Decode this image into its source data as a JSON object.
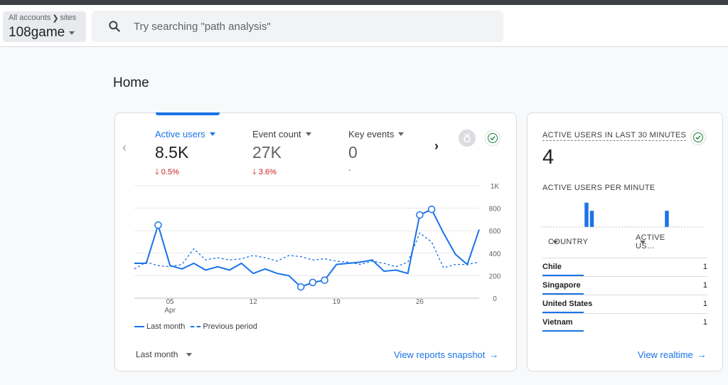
{
  "header": {
    "breadcrumb_account": "All accounts",
    "breadcrumb_property": "sites",
    "property_name": "108game",
    "search_placeholder": "Try searching \"path analysis\""
  },
  "page_title": "Home",
  "metrics_card": {
    "metrics": [
      {
        "label": "Active users",
        "value": "8.5K",
        "delta": "0.5%",
        "direction": "down",
        "active": true
      },
      {
        "label": "Event count",
        "value": "27K",
        "delta": "3.6%",
        "direction": "down",
        "active": false
      },
      {
        "label": "Key events",
        "value": "0",
        "delta": "-",
        "direction": "none",
        "active": false
      }
    ],
    "legend": {
      "current": "Last month",
      "previous": "Previous period"
    },
    "period_selector": "Last month",
    "view_link": "View reports snapshot",
    "icons": {
      "insight": "medal-icon",
      "check": "check-circle-icon"
    },
    "accent_color": "#1a73e8",
    "negative_color": "#c5221f"
  },
  "chart_data": {
    "type": "line",
    "x_tick_labels": [
      "05",
      "12",
      "19",
      "26"
    ],
    "x_tick_sublabels": [
      "Apr",
      "",
      "",
      ""
    ],
    "y_tick_labels": [
      "0",
      "200",
      "400",
      "600",
      "800",
      "1K"
    ],
    "ylim": [
      0,
      1000
    ],
    "grid": true,
    "legend_position": "bottom-left",
    "series": [
      {
        "name": "Last month",
        "style": "solid",
        "values": [
          310,
          310,
          650,
          290,
          260,
          310,
          250,
          280,
          250,
          310,
          220,
          260,
          220,
          200,
          100,
          140,
          160,
          300,
          310,
          320,
          340,
          240,
          250,
          220,
          740,
          790,
          580,
          390,
          300,
          610
        ],
        "highlighted_points": [
          2,
          14,
          15,
          16,
          24,
          25
        ]
      },
      {
        "name": "Previous period",
        "style": "dashed",
        "values": [
          260,
          320,
          290,
          280,
          300,
          440,
          340,
          360,
          340,
          350,
          380,
          360,
          330,
          380,
          370,
          340,
          350,
          330,
          320,
          300,
          330,
          310,
          280,
          320,
          580,
          500,
          270,
          300,
          300,
          320
        ]
      }
    ]
  },
  "realtime_card": {
    "title": "ACTIVE USERS IN LAST 30 MINUTES",
    "value": "4",
    "per_minute_title": "ACTIVE USERS PER MINUTE",
    "per_minute_values": [
      0,
      0,
      0,
      0,
      0,
      0,
      0,
      0,
      3,
      2,
      0,
      0,
      0,
      0,
      0,
      0,
      0,
      0,
      0,
      0,
      0,
      0,
      0,
      2,
      0,
      0,
      0,
      0,
      0,
      0
    ],
    "table_headers": {
      "country": "COUNTRY",
      "users": "ACTIVE US…"
    },
    "rows": [
      {
        "country": "Chile",
        "users": "1",
        "share": 0.25
      },
      {
        "country": "Singapore",
        "users": "1",
        "share": 0.25
      },
      {
        "country": "United States",
        "users": "1",
        "share": 0.25
      },
      {
        "country": "Vietnam",
        "users": "1",
        "share": 0.25
      }
    ],
    "view_link": "View realtime"
  }
}
